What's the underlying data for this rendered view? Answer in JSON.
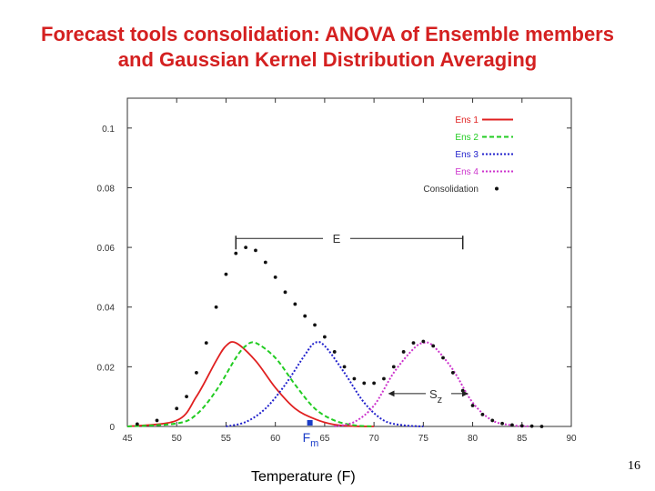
{
  "slide": {
    "title_line1": "Forecast tools consolidation:  ANOVA of Ensemble members",
    "title_line2": "and Gaussian Kernel Distribution Averaging",
    "page_number": "16"
  },
  "chart_data": {
    "type": "line",
    "title": "",
    "xlabel": "Temperature (F)",
    "ylabel": "",
    "xlim": [
      45,
      90
    ],
    "ylim": [
      0,
      0.11
    ],
    "xticks": [
      45,
      50,
      55,
      60,
      65,
      70,
      75,
      80,
      85,
      90
    ],
    "yticks": [
      {
        "value": 0,
        "label": "0"
      },
      {
        "value": 0.02,
        "label": "0.02"
      },
      {
        "value": 0.04,
        "label": "0.04"
      },
      {
        "value": 0.06,
        "label": "0.06"
      },
      {
        "value": 0.08,
        "label": "0.08"
      },
      {
        "value": 0.1,
        "label": "0.1"
      }
    ],
    "grid": false,
    "legend_position": "top-right",
    "series": [
      {
        "name": "Ens 1",
        "style": "solid",
        "color": "#e02020",
        "x": [
          45,
          50,
          52,
          54,
          55,
          56,
          58,
          60,
          62,
          64,
          66,
          68,
          70
        ],
        "y": [
          0,
          0.002,
          0.01,
          0.022,
          0.027,
          0.028,
          0.022,
          0.013,
          0.006,
          0.0025,
          0.0006,
          0.0001,
          0
        ]
      },
      {
        "name": "Ens 2",
        "style": "dashed",
        "color": "#22cc22",
        "x": [
          45,
          50,
          52,
          54,
          56,
          57,
          58,
          60,
          62,
          64,
          66,
          68,
          70
        ],
        "y": [
          0,
          0.001,
          0.004,
          0.012,
          0.023,
          0.027,
          0.028,
          0.023,
          0.014,
          0.006,
          0.002,
          0.0004,
          0
        ]
      },
      {
        "name": "Ens 3",
        "style": "dotted",
        "color": "#2222cc",
        "x": [
          55,
          57,
          59,
          61,
          63,
          64,
          65,
          67,
          69,
          71,
          73,
          75
        ],
        "y": [
          0,
          0.0015,
          0.006,
          0.014,
          0.024,
          0.028,
          0.027,
          0.018,
          0.008,
          0.002,
          0.0004,
          0
        ]
      },
      {
        "name": "Ens 4",
        "style": "dotted",
        "color": "#cc33cc",
        "x": [
          66,
          68,
          70,
          72,
          74,
          75,
          76,
          78,
          80,
          82,
          84,
          86
        ],
        "y": [
          0,
          0.0015,
          0.007,
          0.018,
          0.026,
          0.028,
          0.027,
          0.019,
          0.008,
          0.002,
          0.0004,
          0
        ]
      },
      {
        "name": "Consolidation",
        "style": "points",
        "color": "#111111",
        "x": [
          46,
          48,
          50,
          51,
          52,
          53,
          54,
          55,
          56,
          57,
          58,
          59,
          60,
          61,
          62,
          63,
          64,
          65,
          66,
          67,
          68,
          69,
          70,
          71,
          72,
          73,
          74,
          75,
          76,
          77,
          78,
          79,
          80,
          81,
          82,
          83,
          84,
          85,
          86,
          87
        ],
        "y": [
          0.0008,
          0.002,
          0.006,
          0.01,
          0.018,
          0.028,
          0.04,
          0.051,
          0.058,
          0.06,
          0.059,
          0.055,
          0.05,
          0.045,
          0.041,
          0.037,
          0.034,
          0.03,
          0.025,
          0.02,
          0.016,
          0.0145,
          0.0145,
          0.016,
          0.02,
          0.025,
          0.028,
          0.0285,
          0.027,
          0.023,
          0.018,
          0.012,
          0.007,
          0.004,
          0.002,
          0.001,
          0.0005,
          0.0002,
          0.0001,
          0
        ]
      }
    ],
    "annotations": {
      "E": {
        "label": "E",
        "x_start": 56,
        "x_end": 79,
        "y": 0.063
      },
      "Sz": {
        "label": "S",
        "subscript": "z",
        "x_start": 71.5,
        "x_end": 79.5,
        "y": 0.011
      },
      "Fm": {
        "label": "F",
        "subscript": "m",
        "x": 63.5,
        "y": 0.0005
      }
    }
  }
}
